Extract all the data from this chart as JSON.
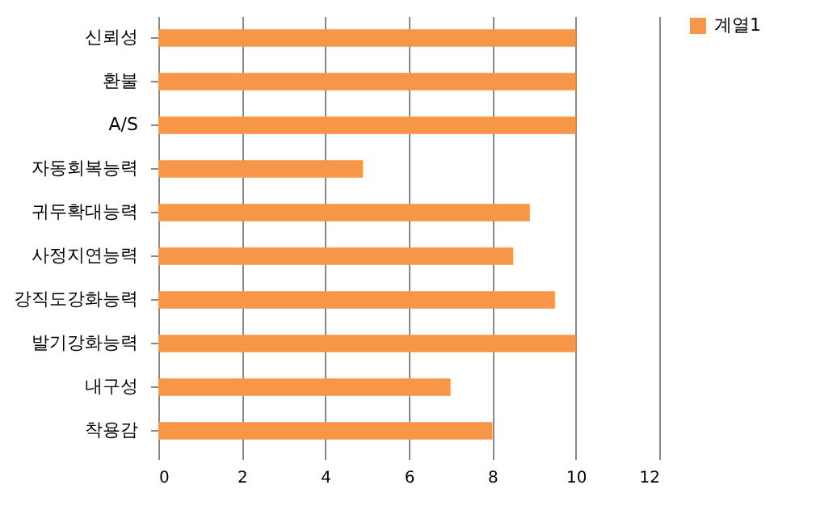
{
  "chart_data": {
    "type": "bar",
    "orientation": "horizontal",
    "categories": [
      "신뢰성",
      "환불",
      "A/S",
      "자동회복능력",
      "귀두확대능력",
      "사정지연능력",
      "강직도강화능력",
      "발기강화능력",
      "내구성",
      "착용감"
    ],
    "series": [
      {
        "name": "계열1",
        "color": "#f79646",
        "values": [
          10,
          10,
          10,
          4.9,
          8.9,
          8.5,
          9.5,
          10,
          7,
          8
        ]
      }
    ],
    "xlim": [
      0,
      12
    ],
    "xticks": [
      0,
      2,
      4,
      6,
      8,
      10,
      12
    ],
    "grid": "x",
    "legend": "right"
  }
}
